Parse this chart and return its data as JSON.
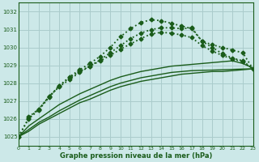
{
  "bg_color": "#cce8e8",
  "grid_color": "#aacccc",
  "line_color": "#1a5c1a",
  "title": "Graphe pression niveau de la mer (hPa)",
  "xlim": [
    0,
    23
  ],
  "ylim": [
    1024.5,
    1032.5
  ],
  "yticks": [
    1025,
    1026,
    1027,
    1028,
    1029,
    1030,
    1031,
    1032
  ],
  "xticks": [
    0,
    1,
    2,
    3,
    4,
    5,
    6,
    7,
    8,
    9,
    10,
    11,
    12,
    13,
    14,
    15,
    16,
    17,
    18,
    19,
    20,
    21,
    22,
    23
  ],
  "series": [
    {
      "x": [
        0,
        1,
        2,
        3,
        4,
        5,
        6,
        7,
        8,
        9,
        10,
        11,
        12,
        13,
        14,
        15,
        16,
        17,
        18,
        19,
        20,
        21,
        22,
        23
      ],
      "y": [
        1025.0,
        1025.3,
        1025.7,
        1026.0,
        1026.3,
        1026.6,
        1026.9,
        1027.1,
        1027.35,
        1027.6,
        1027.8,
        1027.95,
        1028.1,
        1028.2,
        1028.3,
        1028.4,
        1028.5,
        1028.55,
        1028.6,
        1028.65,
        1028.65,
        1028.7,
        1028.75,
        1028.8
      ],
      "style": "solid",
      "marker": null,
      "lw": 1.0
    },
    {
      "x": [
        0,
        1,
        2,
        3,
        4,
        5,
        6,
        7,
        8,
        9,
        10,
        11,
        12,
        13,
        14,
        15,
        16,
        17,
        18,
        19,
        20,
        21,
        22,
        23
      ],
      "y": [
        1025.0,
        1025.4,
        1025.8,
        1026.1,
        1026.45,
        1026.75,
        1027.05,
        1027.3,
        1027.55,
        1027.8,
        1028.0,
        1028.15,
        1028.3,
        1028.4,
        1028.5,
        1028.6,
        1028.65,
        1028.7,
        1028.72,
        1028.73,
        1028.75,
        1028.77,
        1028.79,
        1028.8
      ],
      "style": "solid",
      "marker": null,
      "lw": 1.0
    },
    {
      "x": [
        0,
        1,
        2,
        3,
        4,
        5,
        6,
        7,
        8,
        9,
        10,
        11,
        12,
        13,
        14,
        15,
        16,
        17,
        18,
        19,
        20,
        21,
        22,
        23
      ],
      "y": [
        1025.0,
        1025.6,
        1026.0,
        1026.4,
        1026.8,
        1027.1,
        1027.4,
        1027.65,
        1027.9,
        1028.15,
        1028.35,
        1028.5,
        1028.65,
        1028.75,
        1028.85,
        1028.95,
        1029.0,
        1029.05,
        1029.1,
        1029.15,
        1029.2,
        1029.25,
        1029.1,
        1028.85
      ],
      "style": "solid",
      "marker": null,
      "lw": 1.0
    },
    {
      "x": [
        0,
        1,
        2,
        3,
        4,
        5,
        6,
        7,
        8,
        9,
        10,
        11,
        12,
        13,
        14,
        15,
        16,
        17,
        18,
        19,
        20,
        21,
        22,
        23
      ],
      "y": [
        1025.0,
        1026.0,
        1026.5,
        1027.2,
        1027.85,
        1028.35,
        1028.75,
        1029.1,
        1029.5,
        1030.0,
        1030.6,
        1031.05,
        1031.4,
        1031.55,
        1031.5,
        1031.35,
        1031.2,
        1031.05,
        1030.35,
        1030.15,
        1030.0,
        1029.85,
        1029.7,
        1028.8
      ],
      "style": "dotted",
      "marker": "D",
      "lw": 1.3,
      "ms": 2.5
    },
    {
      "x": [
        0,
        1,
        2,
        3,
        4,
        5,
        6,
        7,
        8,
        9,
        10,
        11,
        12,
        13,
        14,
        15,
        16,
        17,
        18,
        19,
        20,
        21,
        22,
        23
      ],
      "y": [
        1025.0,
        1026.05,
        1026.55,
        1027.25,
        1027.85,
        1028.3,
        1028.65,
        1028.95,
        1029.25,
        1029.55,
        1029.9,
        1030.2,
        1030.5,
        1030.75,
        1030.85,
        1030.8,
        1030.7,
        1030.55,
        1030.1,
        1029.8,
        1029.55,
        1029.35,
        1029.2,
        1028.8
      ],
      "style": "dotted",
      "marker": "D",
      "lw": 1.3,
      "ms": 2.5
    },
    {
      "x": [
        1,
        2,
        3,
        4,
        5,
        6,
        7,
        8,
        9,
        10,
        11,
        12,
        13,
        14,
        15,
        16,
        17,
        18,
        19,
        20,
        21,
        22,
        23
      ],
      "y": [
        1026.1,
        1026.55,
        1027.25,
        1027.8,
        1028.2,
        1028.6,
        1028.95,
        1029.3,
        1029.7,
        1030.1,
        1030.5,
        1030.8,
        1031.0,
        1031.1,
        1031.1,
        1031.05,
        1031.1,
        1030.35,
        1030.0,
        1029.65,
        1029.4,
        1029.25,
        1028.8
      ],
      "style": "dotted",
      "marker": "D",
      "lw": 1.3,
      "ms": 2.5
    }
  ]
}
